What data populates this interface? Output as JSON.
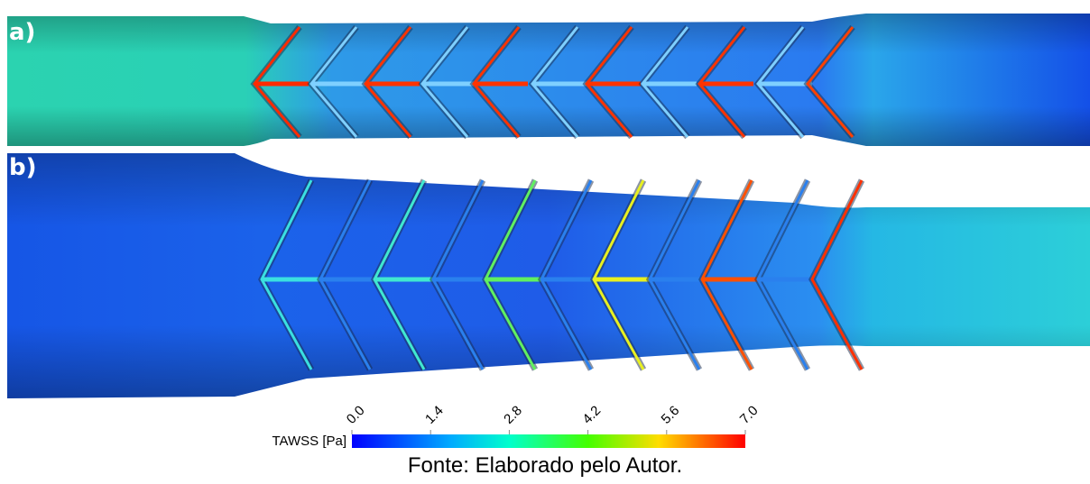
{
  "panels": [
    {
      "label": "a)"
    },
    {
      "label": "b)"
    }
  ],
  "colorbar": {
    "label": "TAWSS [Pa]",
    "range": [
      0,
      7
    ],
    "ticks": [
      {
        "value": 0,
        "label": "0.0"
      },
      {
        "value": 1.4,
        "label": "1.4"
      },
      {
        "value": 2.8,
        "label": "2.8"
      },
      {
        "value": 4.2,
        "label": "4.2"
      },
      {
        "value": 5.6,
        "label": "5.6"
      },
      {
        "value": 7,
        "label": "7.0"
      }
    ]
  },
  "caption": "Fonte: Elaborado pelo Autor."
}
